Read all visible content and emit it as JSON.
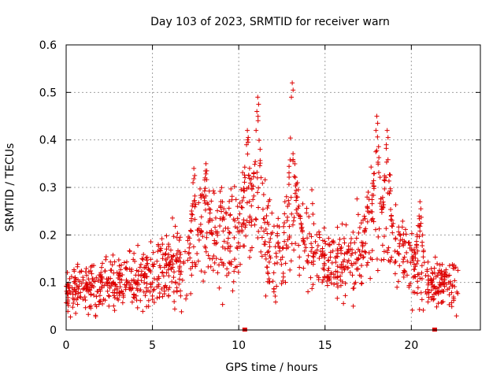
{
  "chart_data": {
    "type": "scatter",
    "title": "Day 103 of 2023, SRMTID for receiver warn",
    "xlabel": "GPS time / hours",
    "ylabel": "SRMTID / TECUs",
    "xlim": [
      0,
      24
    ],
    "ylim": [
      0,
      0.6
    ],
    "x_ticks": [
      0,
      5,
      10,
      15,
      20
    ],
    "y_ticks": [
      0,
      0.1,
      0.2,
      0.3,
      0.4,
      0.5,
      0.6
    ],
    "x_tick_labels": [
      "0",
      "5",
      "10",
      "15",
      "20"
    ],
    "y_tick_labels": [
      "0",
      "0.1",
      "0.2",
      "0.3",
      "0.4",
      "0.5",
      "0.6"
    ],
    "grid": true,
    "marker": "+",
    "marker_color": "#dd0000",
    "baseline_markers_x": [
      10.35,
      21.35
    ],
    "point_count": 1400,
    "trend_hours": [
      0,
      1,
      2,
      3,
      4,
      5,
      6,
      7,
      8,
      9,
      10,
      11,
      12,
      13,
      14,
      15,
      16,
      17,
      18,
      19,
      20,
      21,
      22,
      23
    ],
    "trend_values": [
      0.08,
      0.09,
      0.09,
      0.1,
      0.11,
      0.12,
      0.13,
      0.13,
      0.19,
      0.2,
      0.2,
      0.28,
      0.15,
      0.2,
      0.18,
      0.14,
      0.14,
      0.15,
      0.24,
      0.18,
      0.14,
      0.1,
      0.09,
      0.09
    ],
    "peaks": [
      {
        "x": 7.4,
        "y": 0.34
      },
      {
        "x": 8.1,
        "y": 0.35
      },
      {
        "x": 10.5,
        "y": 0.42
      },
      {
        "x": 11.1,
        "y": 0.49
      },
      {
        "x": 13.1,
        "y": 0.52
      },
      {
        "x": 13.4,
        "y": 0.31
      },
      {
        "x": 17.5,
        "y": 0.29
      },
      {
        "x": 18.0,
        "y": 0.45
      },
      {
        "x": 18.6,
        "y": 0.42
      },
      {
        "x": 20.5,
        "y": 0.27
      }
    ]
  }
}
